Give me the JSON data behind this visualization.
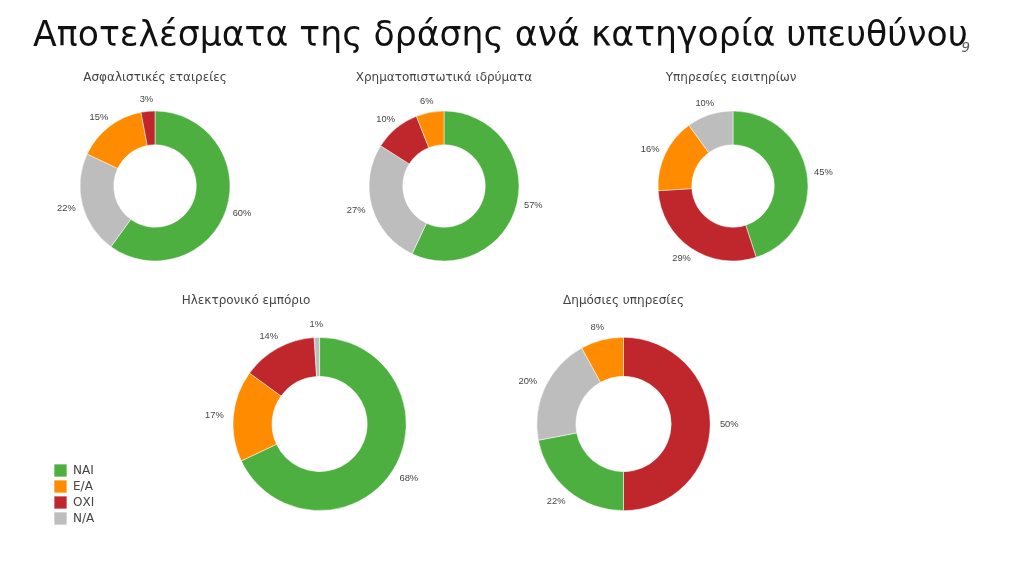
{
  "chart_data": [
    {
      "type": "other",
      "title": "Αποτελέσματα της δράσης ανά κατηγορία υπευθύνου",
      "annotations": [
        "9"
      ]
    },
    {
      "type": "donut",
      "title": "Ασφαλιστικές εταιρείες",
      "categories": [
        null,
        null,
        null,
        null
      ],
      "values": [
        60,
        22,
        15,
        3
      ],
      "colors": [
        "#4caf3f",
        "#bdbdbd",
        "#ff8c00",
        "#c0272d"
      ],
      "value_labels": [
        "60%",
        "22%",
        "15%",
        "3%"
      ]
    },
    {
      "type": "donut",
      "title": "Χρηματοπιστωτικά ιδρύματα",
      "categories": [
        null,
        null,
        null,
        null
      ],
      "values": [
        57,
        27,
        10,
        6
      ],
      "colors": [
        "#4caf3f",
        "#bdbdbd",
        "#c0272d",
        "#ff8c00"
      ],
      "value_labels": [
        "57%",
        "27%",
        "10%",
        "6%"
      ]
    },
    {
      "type": "donut",
      "title": "Υπηρεσίες  εισιτηρίων",
      "categories": [
        null,
        null,
        null,
        null
      ],
      "values": [
        45,
        29,
        16,
        10
      ],
      "colors": [
        "#4caf3f",
        "#c0272d",
        "#ff8c00",
        "#bdbdbd"
      ],
      "value_labels": [
        "45%",
        "29%",
        "16%",
        "10%"
      ]
    },
    {
      "type": "donut",
      "title": "Ηλεκτρονικό εμπόριο",
      "categories": [
        "ΝΑΙ",
        "Ε/Α",
        "ΟΧΙ",
        "Ν/Α"
      ],
      "values": [
        68,
        17,
        14,
        1
      ],
      "colors": [
        "#4caf3f",
        "#ff8c00",
        "#c0272d",
        "#bdbdbd"
      ],
      "value_labels": [
        "68%",
        "17%",
        "14%",
        "1%"
      ],
      "legend": "left"
    },
    {
      "type": "donut",
      "title": "Δημόσιες υπηρεσίες",
      "categories": [
        null,
        null,
        null,
        null
      ],
      "values": [
        50,
        22,
        20,
        8
      ],
      "colors": [
        "#c0272d",
        "#4caf3f",
        "#bdbdbd",
        "#ff8c00"
      ],
      "value_labels": [
        "50%",
        "22%",
        "20%",
        "8%"
      ]
    }
  ]
}
